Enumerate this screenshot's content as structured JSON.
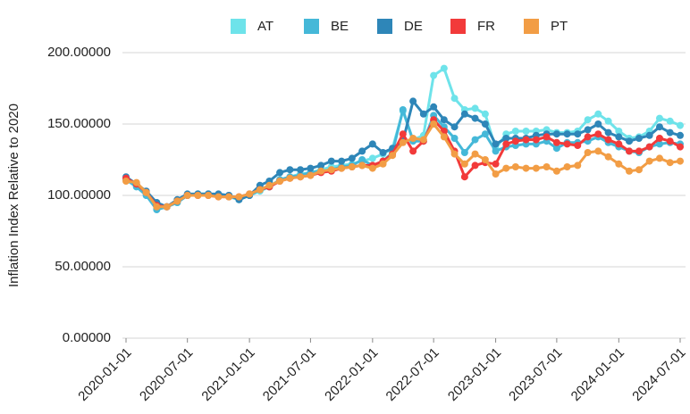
{
  "chart_data": {
    "type": "line",
    "y_label": "Inflation Index Relative to 2020",
    "x": [
      "2020-01-01",
      "2020-02-01",
      "2020-03-01",
      "2020-04-01",
      "2020-05-01",
      "2020-06-01",
      "2020-07-01",
      "2020-08-01",
      "2020-09-01",
      "2020-10-01",
      "2020-11-01",
      "2020-12-01",
      "2021-01-01",
      "2021-02-01",
      "2021-03-01",
      "2021-04-01",
      "2021-05-01",
      "2021-06-01",
      "2021-07-01",
      "2021-08-01",
      "2021-09-01",
      "2021-10-01",
      "2021-11-01",
      "2021-12-01",
      "2022-01-01",
      "2022-02-01",
      "2022-03-01",
      "2022-04-01",
      "2022-05-01",
      "2022-06-01",
      "2022-07-01",
      "2022-08-01",
      "2022-09-01",
      "2022-10-01",
      "2022-11-01",
      "2022-12-01",
      "2023-01-01",
      "2023-02-01",
      "2023-03-01",
      "2023-04-01",
      "2023-05-01",
      "2023-06-01",
      "2023-07-01",
      "2023-08-01",
      "2023-09-01",
      "2023-10-01",
      "2023-11-01",
      "2023-12-01",
      "2024-01-01",
      "2024-02-01",
      "2024-03-01",
      "2024-04-01",
      "2024-05-01",
      "2024-06-01",
      "2024-07-01"
    ],
    "series": [
      {
        "name": "AT",
        "color": "#6ee3ea",
        "values": [
          111,
          107,
          100,
          91,
          92,
          95,
          100,
          101,
          101,
          100,
          99,
          97,
          100,
          103,
          106,
          111,
          113,
          115,
          116,
          118,
          120,
          121,
          122,
          124,
          126,
          129,
          133,
          159,
          139,
          142,
          184,
          189,
          168,
          160,
          161,
          157,
          133,
          143,
          145,
          145,
          145,
          146,
          144,
          144,
          145,
          153,
          157,
          152,
          145,
          140,
          141,
          145,
          154,
          152,
          149
        ]
      },
      {
        "name": "BE",
        "color": "#45b8d8",
        "values": [
          111,
          106,
          100,
          90,
          92,
          95,
          100,
          101,
          101,
          100,
          100,
          98,
          100,
          104,
          106,
          111,
          113,
          114,
          116,
          117,
          118,
          120,
          121,
          125,
          121,
          124,
          130,
          160,
          138,
          138,
          156,
          148,
          140,
          130,
          139,
          143,
          131,
          134,
          135,
          136,
          136,
          138,
          133,
          137,
          137,
          138,
          141,
          137,
          134,
          131,
          130,
          134,
          136,
          137,
          136
        ]
      },
      {
        "name": "DE",
        "color": "#2e86b8",
        "values": [
          113,
          108,
          103,
          95,
          92,
          97,
          101,
          101,
          101,
          101,
          100,
          97,
          100,
          107,
          110,
          116,
          118,
          118,
          119,
          121,
          124,
          124,
          126,
          131,
          136,
          130,
          133,
          138,
          166,
          157,
          162,
          153,
          148,
          157,
          154,
          150,
          136,
          140,
          140,
          140,
          142,
          143,
          143,
          143,
          143,
          146,
          150,
          144,
          141,
          138,
          140,
          142,
          148,
          144,
          142
        ]
      },
      {
        "name": "FR",
        "color": "#f23a3a",
        "values": [
          112,
          108,
          102,
          93,
          92,
          96,
          100,
          100,
          100,
          99,
          99,
          99,
          101,
          104,
          106,
          110,
          112,
          113,
          114,
          116,
          117,
          119,
          120,
          121,
          121,
          124,
          129,
          143,
          131,
          138,
          153,
          145,
          131,
          113,
          121,
          123,
          122,
          136,
          138,
          139,
          139,
          141,
          137,
          136,
          135,
          141,
          143,
          139,
          136,
          131,
          131,
          134,
          140,
          138,
          134
        ]
      },
      {
        "name": "PT",
        "color": "#f29d45",
        "values": [
          110,
          109,
          102,
          92,
          92,
          96,
          100,
          100,
          100,
          99,
          99,
          99,
          101,
          104,
          107,
          110,
          112,
          113,
          114,
          117,
          118,
          119,
          120,
          121,
          119,
          122,
          128,
          137,
          140,
          139,
          150,
          141,
          129,
          122,
          129,
          125,
          115,
          119,
          120,
          119,
          119,
          120,
          117,
          120,
          121,
          130,
          131,
          127,
          122,
          117,
          118,
          124,
          126,
          123,
          124
        ]
      }
    ],
    "xlim": [
      "2020-01-01",
      "2024-07-01"
    ],
    "xticks": [
      "2020-01-01",
      "2020-07-01",
      "2021-01-01",
      "2021-07-01",
      "2022-01-01",
      "2022-07-01",
      "2023-01-01",
      "2023-07-01",
      "2024-01-01",
      "2024-07-01"
    ],
    "ylim": [
      0,
      200
    ],
    "yticks": [
      {
        "value": 0,
        "label": "0.00000"
      },
      {
        "value": 50,
        "label": "50.00000"
      },
      {
        "value": 100,
        "label": "100.00000"
      },
      {
        "value": 150,
        "label": "150.00000"
      },
      {
        "value": 200,
        "label": "200.00000"
      }
    ],
    "grid": true,
    "legend": "top"
  }
}
